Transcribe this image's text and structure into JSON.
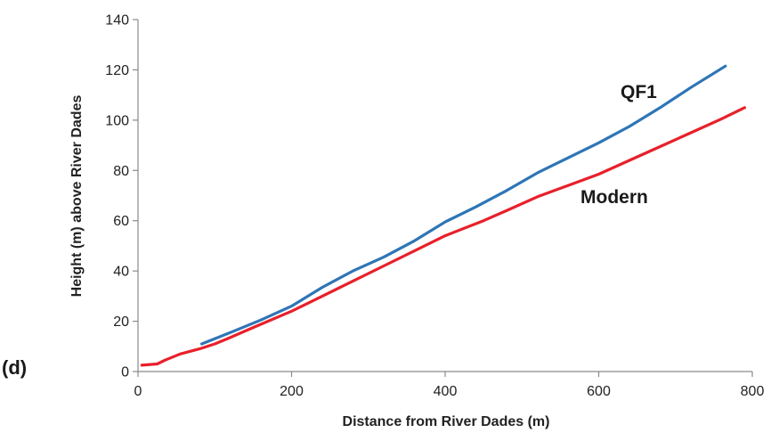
{
  "panel_label": "(d)",
  "chart_data": {
    "type": "line",
    "title": "",
    "xlabel": "Distance from River Dades (m)",
    "ylabel": "Height (m) above River Dades",
    "xlim": [
      0,
      800
    ],
    "ylim": [
      0,
      140
    ],
    "xticks": [
      0,
      200,
      400,
      600,
      800
    ],
    "yticks": [
      0,
      20,
      40,
      60,
      80,
      100,
      120,
      140
    ],
    "grid": false,
    "legend": "inline labels",
    "series": [
      {
        "name": "QF1",
        "color": "#2e75b6",
        "points": [
          [
            83,
            11
          ],
          [
            120,
            15.5
          ],
          [
            160,
            20.5
          ],
          [
            200,
            26
          ],
          [
            240,
            33.5
          ],
          [
            280,
            40
          ],
          [
            320,
            45.5
          ],
          [
            360,
            52
          ],
          [
            400,
            59.5
          ],
          [
            440,
            65.5
          ],
          [
            480,
            72
          ],
          [
            520,
            79
          ],
          [
            540,
            82
          ],
          [
            560,
            85
          ],
          [
            600,
            91
          ],
          [
            640,
            97.5
          ],
          [
            680,
            105
          ],
          [
            720,
            113
          ],
          [
            765,
            121.5
          ]
        ]
      },
      {
        "name": "Modern",
        "color": "#e8202a",
        "points": [
          [
            5,
            2.5
          ],
          [
            25,
            3
          ],
          [
            35,
            4.5
          ],
          [
            55,
            7
          ],
          [
            80,
            9
          ],
          [
            100,
            11
          ],
          [
            120,
            13.5
          ],
          [
            150,
            17.5
          ],
          [
            200,
            24
          ],
          [
            240,
            30
          ],
          [
            280,
            36
          ],
          [
            320,
            42
          ],
          [
            360,
            48
          ],
          [
            400,
            54
          ],
          [
            450,
            60
          ],
          [
            480,
            64
          ],
          [
            520,
            69.5
          ],
          [
            560,
            74
          ],
          [
            600,
            78.5
          ],
          [
            640,
            84
          ],
          [
            680,
            89.5
          ],
          [
            720,
            95
          ],
          [
            760,
            100.5
          ],
          [
            790,
            105
          ]
        ]
      }
    ]
  }
}
